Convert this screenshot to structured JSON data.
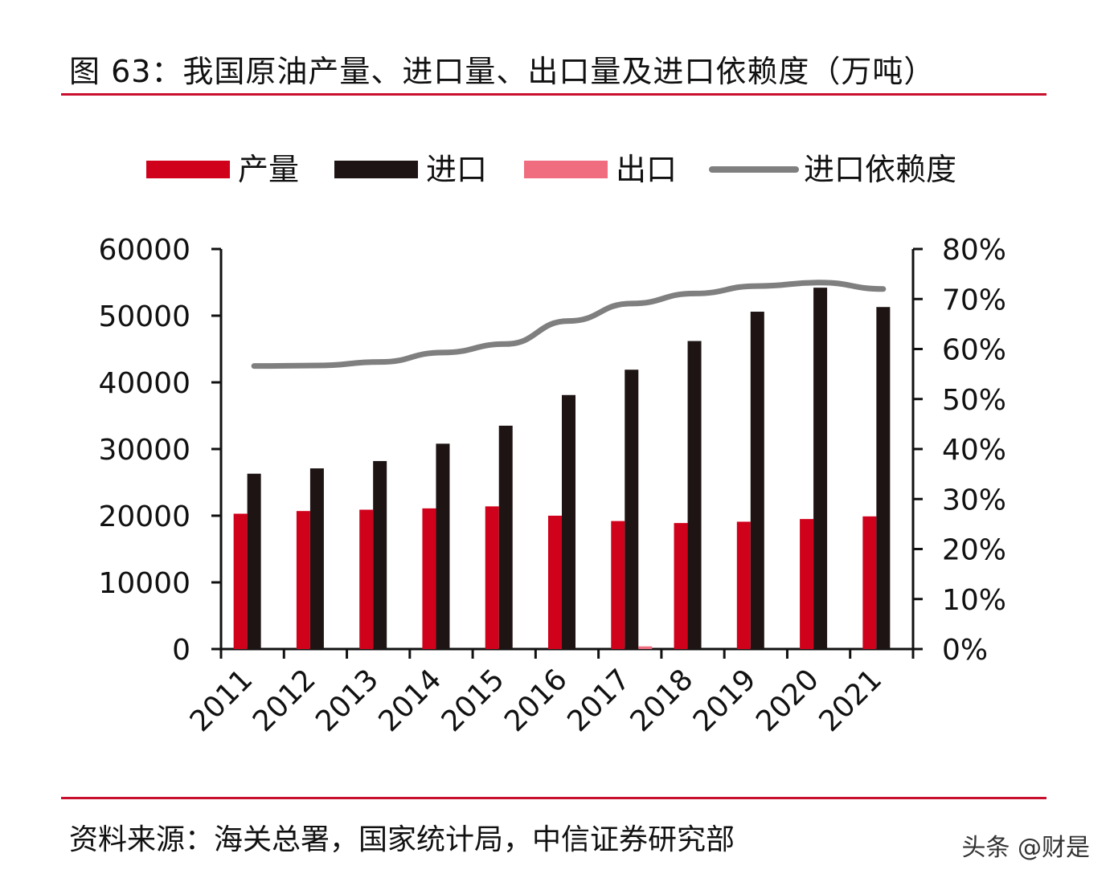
{
  "title": "图 63：我国原油产量、进口量、出口量及进口依赖度（万吨）",
  "source": "资料来源：海关总署，国家统计局，中信证券研究部",
  "watermark": "头条 @财是",
  "chart_data": {
    "type": "bar",
    "title": "图 63：我国原油产量、进口量、出口量及进口依赖度（万吨）",
    "categories": [
      "2011",
      "2012",
      "2013",
      "2014",
      "2015",
      "2016",
      "2017",
      "2018",
      "2019",
      "2020",
      "2021"
    ],
    "series": [
      {
        "name": "产量",
        "type": "bar",
        "axis": "left",
        "color": "#d0021b",
        "values": [
          20300,
          20700,
          20900,
          21100,
          21400,
          20000,
          19200,
          18900,
          19100,
          19500,
          19900
        ]
      },
      {
        "name": "进口",
        "type": "bar",
        "axis": "left",
        "color": "#1e1414",
        "values": [
          26300,
          27100,
          28200,
          30800,
          33500,
          38100,
          41900,
          46200,
          50600,
          54200,
          51300
        ]
      },
      {
        "name": "出口",
        "type": "bar",
        "axis": "left",
        "color": "#f06d7f",
        "values": [
          0,
          0,
          0,
          0,
          0,
          0,
          400,
          0,
          0,
          0,
          0
        ]
      },
      {
        "name": "进口依赖度",
        "type": "line",
        "axis": "right",
        "color": "#7f7f7f",
        "values": [
          0.566,
          0.567,
          0.574,
          0.593,
          0.61,
          0.656,
          0.691,
          0.711,
          0.726,
          0.733,
          0.72
        ]
      }
    ],
    "left_axis": {
      "min": 0,
      "max": 60000,
      "ticks": [
        0,
        10000,
        20000,
        30000,
        40000,
        50000,
        60000
      ]
    },
    "right_axis": {
      "min": 0,
      "max": 0.8,
      "ticks": [
        "0%",
        "10%",
        "20%",
        "30%",
        "40%",
        "50%",
        "60%",
        "70%",
        "80%"
      ]
    },
    "xlabel": "",
    "ylabel": "",
    "legend_position": "top"
  }
}
